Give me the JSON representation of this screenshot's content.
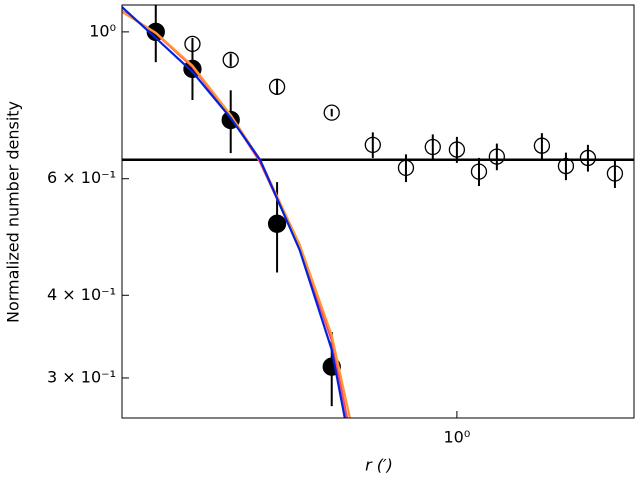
{
  "chart_data": {
    "type": "scatter",
    "xlabel": "r (′)",
    "ylabel": "Normalized number density",
    "xscale": "log",
    "yscale": "log",
    "xlim": [
      0.214,
      2.26
    ],
    "ylim": [
      0.261,
      1.098
    ],
    "xticks": [
      {
        "value": 1,
        "label": "10⁰"
      }
    ],
    "yticks": [
      {
        "value": 1,
        "label": "10⁰"
      },
      {
        "value": 0.6,
        "label": "6 × 10⁻¹"
      },
      {
        "value": 0.4,
        "label": "4 × 10⁻¹"
      },
      {
        "value": 0.3,
        "label": "3 × 10⁻¹"
      }
    ],
    "series": [
      {
        "color": "#000000",
        "fill": "#000000",
        "x": [
          0.25,
          0.296,
          0.353,
          0.437,
          0.562
        ],
        "values": [
          1.0,
          0.879,
          0.736,
          0.513,
          0.312
        ],
        "errors": [
          0.1,
          0.09,
          0.08,
          0.08,
          0.04
        ]
      },
      {
        "color": "#000000",
        "fill": "none",
        "x": [
          0.296,
          0.353,
          0.437,
          0.562,
          0.679,
          0.791,
          0.895,
          1.0,
          1.107,
          1.202,
          1.479,
          1.652,
          1.828,
          2.07
        ],
        "values": [
          0.959,
          0.907,
          0.826,
          0.755,
          0.675,
          0.623,
          0.67,
          0.664,
          0.615,
          0.648,
          0.673,
          0.627,
          0.645,
          0.611
        ],
        "errors": [
          0.02,
          0.02,
          0.02,
          0.01,
          0.03,
          0.03,
          0.03,
          0.03,
          0.03,
          0.03,
          0.03,
          0.03,
          0.03,
          0.03
        ]
      }
    ],
    "lines": [
      {
        "color": "#ff4466",
        "x": [
          0.214,
          0.25,
          0.296,
          0.353,
          0.404,
          0.485,
          0.562,
          0.605
        ],
        "values": [
          1.075,
          0.995,
          0.885,
          0.745,
          0.636,
          0.472,
          0.342,
          0.258
        ]
      },
      {
        "color": "#ff9933",
        "x": [
          0.214,
          0.25,
          0.296,
          0.353,
          0.404,
          0.485,
          0.562,
          0.611
        ],
        "values": [
          1.072,
          0.997,
          0.889,
          0.749,
          0.641,
          0.477,
          0.348,
          0.261
        ]
      },
      {
        "color": "#0022dd",
        "x": [
          0.214,
          0.25,
          0.296,
          0.353,
          0.404,
          0.485,
          0.562,
          0.597
        ],
        "values": [
          1.09,
          0.979,
          0.87,
          0.741,
          0.641,
          0.468,
          0.331,
          0.261
        ]
      }
    ],
    "hline": {
      "value": 0.641,
      "color": "#000000"
    }
  }
}
